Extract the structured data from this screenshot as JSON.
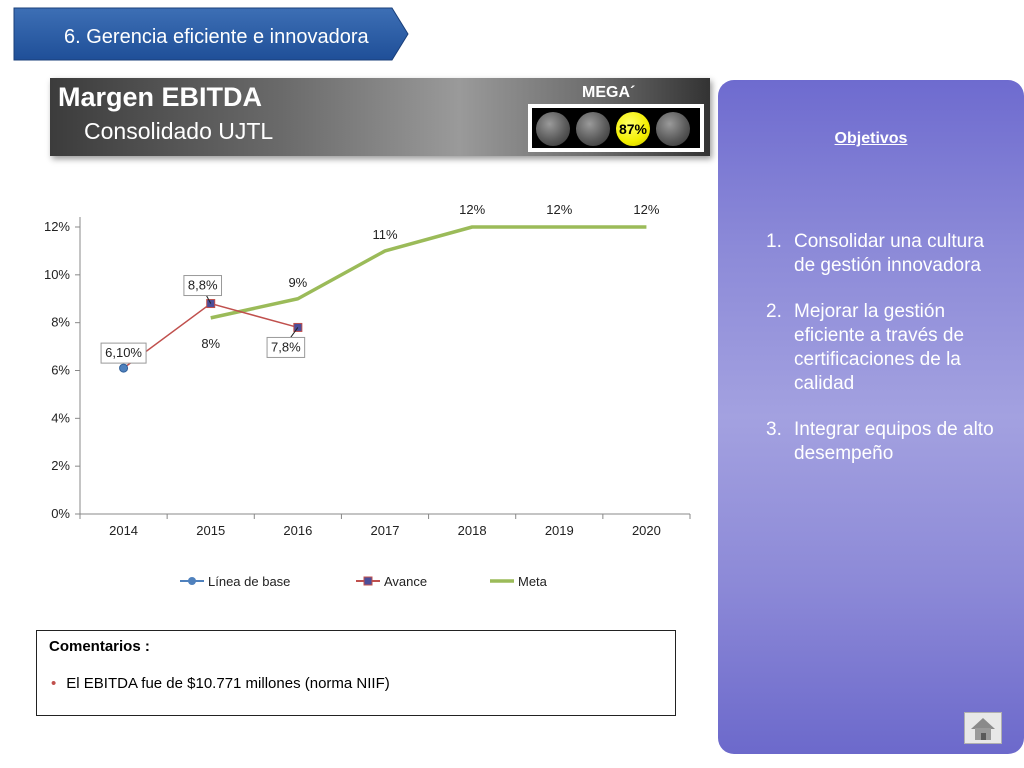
{
  "section": {
    "label": "6. Gerencia eficiente e innovadora"
  },
  "header": {
    "title": "Margen EBITDA",
    "subtitle": "Consolidado UJTL"
  },
  "indicator": {
    "label": "MEGA´",
    "value": "87%",
    "active_color": "#f3ef00"
  },
  "objectives": {
    "title": "Objetivos",
    "items": [
      {
        "num": "1.",
        "text": "Consolidar una cultura de gestión innovadora"
      },
      {
        "num": "2.",
        "text": "Mejorar la gestión eficiente a través de certificaciones de la calidad"
      },
      {
        "num": "3.",
        "text": "Integrar equipos de alto desempeño"
      }
    ]
  },
  "comments": {
    "title": "Comentarios :",
    "items": [
      "El EBITDA fue de $10.771 millones (norma NIIF)"
    ]
  },
  "chart_data": {
    "type": "line",
    "categories": [
      "2014",
      "2015",
      "2016",
      "2017",
      "2018",
      "2019",
      "2020"
    ],
    "ylim": [
      0,
      12
    ],
    "yticks": [
      0,
      2,
      4,
      6,
      8,
      10,
      12
    ],
    "ytick_labels": [
      "0%",
      "2%",
      "4%",
      "6%",
      "8%",
      "10%",
      "12%"
    ],
    "grid": false,
    "legend": "bottom",
    "series": [
      {
        "name": "Línea de base",
        "color": "#4f81bd",
        "values": [
          6.1,
          null,
          null,
          null,
          null,
          null,
          null
        ],
        "labels": [
          "6,10%",
          "",
          "",
          "",
          "",
          "",
          ""
        ],
        "boxed": true
      },
      {
        "name": "Avance",
        "color": "#c0504d",
        "values": [
          6.1,
          8.8,
          7.8,
          null,
          null,
          null,
          null
        ],
        "labels": [
          "",
          "8,8%",
          "7,8%",
          "",
          "",
          "",
          ""
        ],
        "boxed": true
      },
      {
        "name": "Meta",
        "color": "#9bbb59",
        "values": [
          null,
          8.2,
          9.0,
          11.0,
          12.0,
          12.0,
          12.0
        ],
        "labels": [
          "",
          "8%",
          "9%",
          "11%",
          "12%",
          "12%",
          "12%"
        ],
        "boxed": false
      }
    ]
  }
}
